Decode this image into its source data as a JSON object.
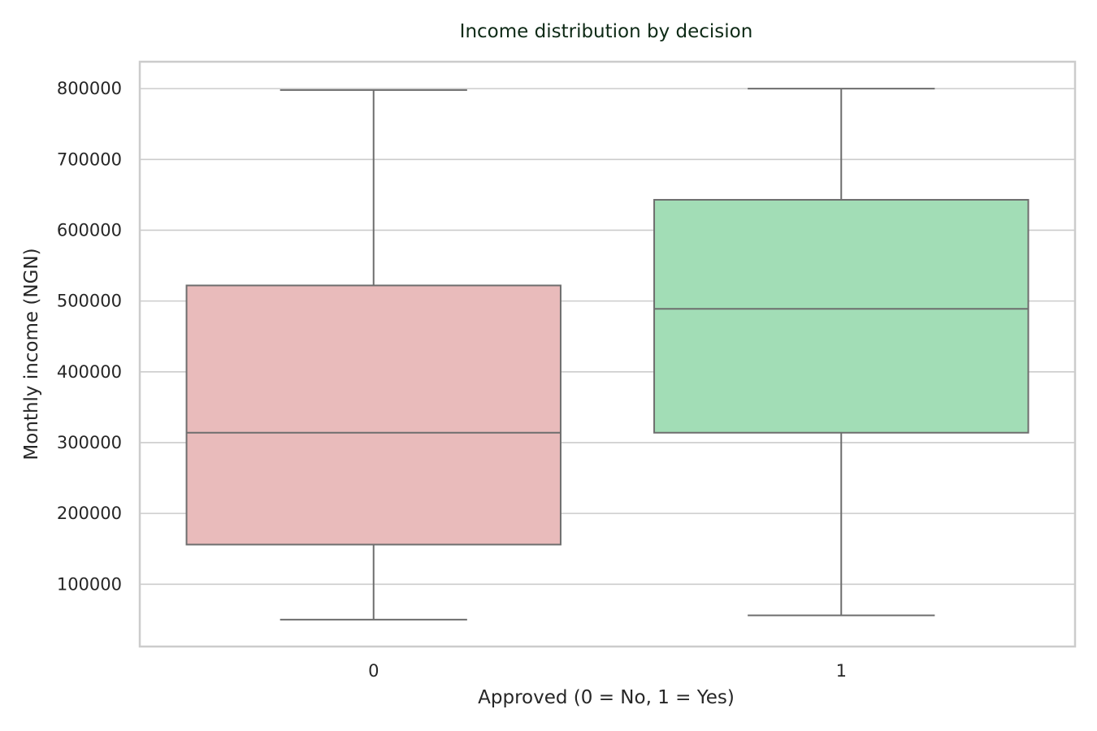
{
  "chart_data": {
    "type": "boxplot",
    "title": "Income distribution by decision",
    "xlabel": "Approved (0 = No, 1 = Yes)",
    "ylabel": "Monthly income (NGN)",
    "ylim": [
      12000,
      838000
    ],
    "yticks": [
      100000,
      200000,
      300000,
      400000,
      500000,
      600000,
      700000,
      800000
    ],
    "ytick_labels": [
      "100000",
      "200000",
      "300000",
      "400000",
      "500000",
      "600000",
      "700000",
      "800000"
    ],
    "grid": true,
    "categories": [
      "0",
      "1"
    ],
    "boxes": [
      {
        "category": "0",
        "whisker_low": 50000,
        "q1": 156000,
        "median": 314000,
        "q3": 522000,
        "whisker_high": 798000,
        "color": "#e9bbbb"
      },
      {
        "category": "1",
        "whisker_low": 56000,
        "q1": 314000,
        "median": 489000,
        "q3": 643000,
        "whisker_high": 800000,
        "color": "#a2ddb6"
      }
    ]
  }
}
